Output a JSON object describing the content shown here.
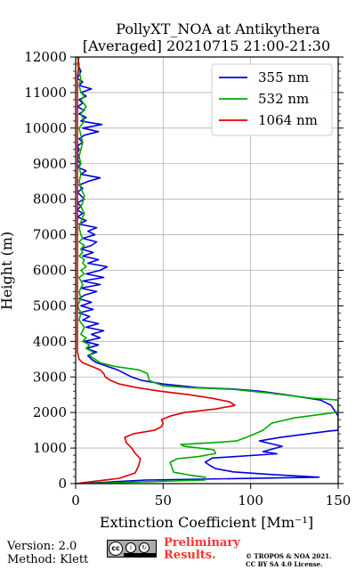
{
  "chart_data": {
    "type": "line",
    "title": "PollyXT_NOA at Antikythera",
    "subtitle": "[Averaged] 20210715 21:00-21:30",
    "xlabel": "Extinction Coefficient [Mm⁻¹]",
    "ylabel": "Height (m)",
    "xlim": [
      0,
      150
    ],
    "ylim": [
      0,
      12000
    ],
    "xticks": [
      "0",
      "50",
      "100",
      "150"
    ],
    "yticks": [
      "0",
      "1000",
      "2000",
      "3000",
      "4000",
      "5000",
      "6000",
      "7000",
      "8000",
      "9000",
      "10000",
      "11000",
      "12000"
    ],
    "grid": true,
    "legend_position": "top-right",
    "series": [
      {
        "name": "355 nm",
        "color": "#0000dd",
        "points": [
          [
            2,
            0
          ],
          [
            40,
            100
          ],
          [
            139,
            180
          ],
          [
            110,
            260
          ],
          [
            90,
            330
          ],
          [
            80,
            420
          ],
          [
            77,
            500
          ],
          [
            74,
            600
          ],
          [
            78,
            720
          ],
          [
            115,
            840
          ],
          [
            107,
            900
          ],
          [
            118,
            1050
          ],
          [
            105,
            1200
          ],
          [
            117,
            1300
          ],
          [
            145,
            1480
          ],
          [
            150,
            1500
          ],
          [
            150,
            1900
          ],
          [
            146,
            2200
          ],
          [
            140,
            2350
          ],
          [
            120,
            2500
          ],
          [
            105,
            2600
          ],
          [
            90,
            2660
          ],
          [
            70,
            2700
          ],
          [
            50,
            2800
          ],
          [
            38,
            2900
          ],
          [
            32,
            3000
          ],
          [
            28,
            3100
          ],
          [
            24,
            3200
          ],
          [
            18,
            3300
          ],
          [
            12,
            3400
          ],
          [
            9,
            3500
          ],
          [
            7,
            3600
          ],
          [
            12,
            3700
          ],
          [
            6,
            3800
          ],
          [
            13,
            3900
          ],
          [
            5,
            4000
          ],
          [
            14,
            4100
          ],
          [
            9,
            4200
          ],
          [
            16,
            4300
          ],
          [
            6,
            4400
          ],
          [
            13,
            4500
          ],
          [
            4,
            4600
          ],
          [
            8,
            4700
          ],
          [
            2,
            4800
          ],
          [
            10,
            4900
          ],
          [
            3,
            5000
          ],
          [
            9,
            5100
          ],
          [
            2,
            5200
          ],
          [
            5,
            5300
          ],
          [
            12,
            5400
          ],
          [
            3,
            5500
          ],
          [
            14,
            5600
          ],
          [
            4,
            5700
          ],
          [
            16,
            5800
          ],
          [
            6,
            5900
          ],
          [
            14,
            6000
          ],
          [
            18,
            6100
          ],
          [
            7,
            6200
          ],
          [
            13,
            6300
          ],
          [
            4,
            6400
          ],
          [
            10,
            6500
          ],
          [
            3,
            6600
          ],
          [
            9,
            6700
          ],
          [
            12,
            6800
          ],
          [
            4,
            6900
          ],
          [
            11,
            7000
          ],
          [
            7,
            7100
          ],
          [
            12,
            7200
          ],
          [
            2,
            7300
          ],
          [
            6,
            7400
          ],
          [
            1,
            7500
          ],
          [
            4,
            7600
          ],
          [
            1,
            7700
          ],
          [
            3,
            7800
          ],
          [
            1,
            7900
          ],
          [
            5,
            8000
          ],
          [
            3,
            8100
          ],
          [
            1,
            8200
          ],
          [
            4,
            8300
          ],
          [
            2,
            8400
          ],
          [
            7,
            8500
          ],
          [
            14,
            8600
          ],
          [
            3,
            8700
          ],
          [
            6,
            8800
          ],
          [
            1,
            8900
          ],
          [
            3,
            9000
          ],
          [
            1,
            9100
          ],
          [
            2,
            9200
          ],
          [
            1,
            9300
          ],
          [
            2,
            9400
          ],
          [
            1,
            9500
          ],
          [
            4,
            9600
          ],
          [
            2,
            9700
          ],
          [
            5,
            9800
          ],
          [
            13,
            9900
          ],
          [
            4,
            10000
          ],
          [
            15,
            10100
          ],
          [
            3,
            10200
          ],
          [
            6,
            10300
          ],
          [
            2,
            10400
          ],
          [
            5,
            10500
          ],
          [
            1,
            10600
          ],
          [
            4,
            10700
          ],
          [
            2,
            10800
          ],
          [
            6,
            10900
          ],
          [
            3,
            11000
          ],
          [
            9,
            11100
          ],
          [
            2,
            11200
          ],
          [
            4,
            11300
          ],
          [
            1,
            11400
          ],
          [
            3,
            11600
          ],
          [
            1,
            11800
          ],
          [
            2,
            12000
          ]
        ]
      },
      {
        "name": "532 nm",
        "color": "#00aa00",
        "points": [
          [
            2,
            0
          ],
          [
            74,
            100
          ],
          [
            74,
            180
          ],
          [
            65,
            240
          ],
          [
            56,
            320
          ],
          [
            55,
            450
          ],
          [
            54,
            600
          ],
          [
            58,
            700
          ],
          [
            70,
            760
          ],
          [
            80,
            850
          ],
          [
            79,
            950
          ],
          [
            62,
            1050
          ],
          [
            60,
            1100
          ],
          [
            78,
            1150
          ],
          [
            92,
            1200
          ],
          [
            100,
            1350
          ],
          [
            107,
            1500
          ],
          [
            112,
            1700
          ],
          [
            125,
            1850
          ],
          [
            148,
            2000
          ],
          [
            150,
            2030
          ],
          [
            150,
            2350
          ],
          [
            135,
            2400
          ],
          [
            110,
            2550
          ],
          [
            90,
            2650
          ],
          [
            65,
            2700
          ],
          [
            50,
            2750
          ],
          [
            42,
            2900
          ],
          [
            41,
            3100
          ],
          [
            36,
            3200
          ],
          [
            22,
            3300
          ],
          [
            14,
            3400
          ],
          [
            11,
            3500
          ],
          [
            8,
            3600
          ],
          [
            10,
            3700
          ],
          [
            6,
            3800
          ],
          [
            8,
            3900
          ],
          [
            4,
            4000
          ],
          [
            6,
            4100
          ],
          [
            3,
            4200
          ],
          [
            5,
            4400
          ],
          [
            2,
            4600
          ],
          [
            3,
            4800
          ],
          [
            1,
            5000
          ],
          [
            3,
            5200
          ],
          [
            2,
            5400
          ],
          [
            4,
            5600
          ],
          [
            2,
            5800
          ],
          [
            5,
            5900
          ],
          [
            3,
            6000
          ],
          [
            6,
            6100
          ],
          [
            4,
            6200
          ],
          [
            5,
            6300
          ],
          [
            2,
            6400
          ],
          [
            4,
            6500
          ],
          [
            3,
            6600
          ],
          [
            5,
            6700
          ],
          [
            2,
            6800
          ],
          [
            4,
            6900
          ],
          [
            3,
            7000
          ],
          [
            2,
            7200
          ],
          [
            4,
            7500
          ],
          [
            5,
            7600
          ],
          [
            3,
            7800
          ],
          [
            4,
            7900
          ],
          [
            5,
            8100
          ],
          [
            3,
            8300
          ],
          [
            2,
            8500
          ],
          [
            3,
            8700
          ],
          [
            2,
            8900
          ],
          [
            3,
            9000
          ],
          [
            2,
            9200
          ],
          [
            3,
            9400
          ],
          [
            4,
            9600
          ],
          [
            3,
            9800
          ],
          [
            2,
            10000
          ],
          [
            5,
            10200
          ],
          [
            3,
            10400
          ],
          [
            6,
            10600
          ],
          [
            3,
            10800
          ],
          [
            5,
            10900
          ],
          [
            3,
            11000
          ],
          [
            2,
            11200
          ],
          [
            3,
            11400
          ],
          [
            2,
            11600
          ],
          [
            1,
            11800
          ],
          [
            2,
            12000
          ]
        ]
      },
      {
        "name": "1064 nm",
        "color": "#dd0000",
        "points": [
          [
            0,
            0
          ],
          [
            10,
            60
          ],
          [
            25,
            150
          ],
          [
            34,
            300
          ],
          [
            36,
            500
          ],
          [
            37,
            700
          ],
          [
            34,
            850
          ],
          [
            32,
            1000
          ],
          [
            29,
            1150
          ],
          [
            28,
            1300
          ],
          [
            33,
            1400
          ],
          [
            45,
            1500
          ],
          [
            49,
            1600
          ],
          [
            50,
            1700
          ],
          [
            49,
            1800
          ],
          [
            54,
            1900
          ],
          [
            62,
            2000
          ],
          [
            80,
            2100
          ],
          [
            91,
            2200
          ],
          [
            88,
            2300
          ],
          [
            78,
            2400
          ],
          [
            65,
            2500
          ],
          [
            48,
            2600
          ],
          [
            35,
            2700
          ],
          [
            25,
            2800
          ],
          [
            20,
            2900
          ],
          [
            17,
            3000
          ],
          [
            16,
            3100
          ],
          [
            14,
            3200
          ],
          [
            9,
            3300
          ],
          [
            4,
            3400
          ],
          [
            2,
            3500
          ],
          [
            1,
            3700
          ],
          [
            1,
            4500
          ],
          [
            1,
            5500
          ],
          [
            1,
            6500
          ],
          [
            1,
            7500
          ],
          [
            1,
            8500
          ],
          [
            1,
            9500
          ],
          [
            1,
            10500
          ],
          [
            1,
            11500
          ],
          [
            2,
            11800
          ],
          [
            1,
            12000
          ]
        ]
      }
    ]
  },
  "footer": {
    "version": "Version: 2.0",
    "method": "Method: Klett",
    "preliminary_line1": "Preliminary",
    "preliminary_line2": "Results.",
    "copyright_line1": "© TROPOS & NOA 2021.",
    "copyright_line2": "CC BY SA 4.0 License.",
    "license_badge": "cc-by-sa-icon"
  }
}
